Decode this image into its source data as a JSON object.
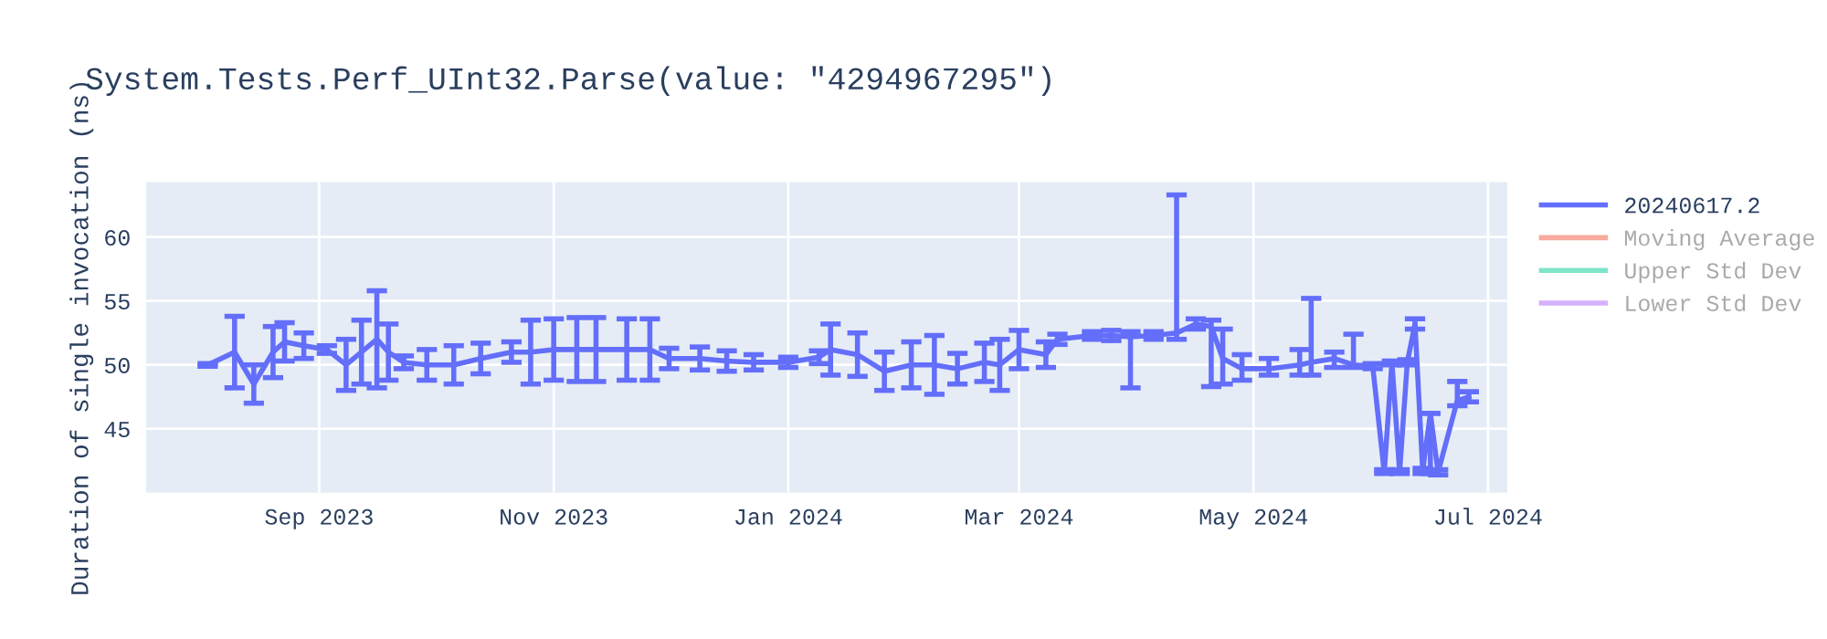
{
  "chart_data": {
    "type": "line",
    "title": "System.Tests.Perf_UInt32.Parse(value: \"4294967295\")",
    "ylabel": "Duration of single invocation (ns)",
    "x": [
      "2023-08-03",
      "2023-08-10",
      "2023-08-15",
      "2023-08-20",
      "2023-08-23",
      "2023-08-28",
      "2023-09-03",
      "2023-09-08",
      "2023-09-12",
      "2023-09-16",
      "2023-09-19",
      "2023-09-23",
      "2023-09-29",
      "2023-10-06",
      "2023-10-13",
      "2023-10-21",
      "2023-10-26",
      "2023-11-01",
      "2023-11-07",
      "2023-11-12",
      "2023-11-20",
      "2023-11-26",
      "2023-12-01",
      "2023-12-09",
      "2023-12-16",
      "2023-12-23",
      "2024-01-01",
      "2024-01-09",
      "2024-01-12",
      "2024-01-19",
      "2024-01-26",
      "2024-02-02",
      "2024-02-08",
      "2024-02-14",
      "2024-02-21",
      "2024-02-25",
      "2024-03-01",
      "2024-03-08",
      "2024-03-11",
      "2024-03-20",
      "2024-03-25",
      "2024-03-30",
      "2024-04-05",
      "2024-04-11",
      "2024-04-16",
      "2024-04-20",
      "2024-04-23",
      "2024-04-28",
      "2024-05-05",
      "2024-05-13",
      "2024-05-16",
      "2024-05-22",
      "2024-05-27",
      "2024-06-01",
      "2024-06-04",
      "2024-06-06",
      "2024-06-08",
      "2024-06-10",
      "2024-06-12",
      "2024-06-14",
      "2024-06-16",
      "2024-06-18",
      "2024-06-23",
      "2024-06-26"
    ],
    "series": [
      {
        "name": "20240617.2",
        "color": "#636efa",
        "values": [
          50.0,
          51.0,
          48.5,
          51.0,
          51.8,
          51.5,
          51.2,
          50.0,
          51.0,
          52.0,
          51.0,
          50.2,
          50.0,
          50.0,
          50.5,
          51.0,
          51.0,
          51.2,
          51.2,
          51.2,
          51.2,
          51.2,
          50.5,
          50.5,
          50.3,
          50.2,
          50.2,
          50.6,
          51.2,
          50.8,
          49.5,
          50.0,
          50.0,
          49.7,
          50.2,
          50.0,
          51.2,
          50.8,
          52.0,
          52.3,
          52.3,
          52.2,
          52.3,
          52.5,
          53.2,
          53.0,
          50.5,
          49.7,
          49.7,
          50.0,
          50.2,
          50.5,
          50.0,
          49.9,
          41.6,
          50.2,
          41.6,
          50.2,
          53.2,
          41.7,
          46.2,
          41.6,
          47.2,
          47.5
        ],
        "errors": [
          [
            49.9,
            50.1
          ],
          [
            48.2,
            53.8
          ],
          [
            47.0,
            50.0
          ],
          [
            49.0,
            53.0
          ],
          [
            50.3,
            53.3
          ],
          [
            50.5,
            52.5
          ],
          [
            50.9,
            51.5
          ],
          [
            48.0,
            52.0
          ],
          [
            48.5,
            53.5
          ],
          [
            48.2,
            55.8
          ],
          [
            48.8,
            53.2
          ],
          [
            49.7,
            50.7
          ],
          [
            48.8,
            51.2
          ],
          [
            48.5,
            51.5
          ],
          [
            49.3,
            51.7
          ],
          [
            50.2,
            51.8
          ],
          [
            48.5,
            53.5
          ],
          [
            48.8,
            53.6
          ],
          [
            48.7,
            53.7
          ],
          [
            48.7,
            53.7
          ],
          [
            48.8,
            53.6
          ],
          [
            48.8,
            53.6
          ],
          [
            49.7,
            51.3
          ],
          [
            49.6,
            51.4
          ],
          [
            49.5,
            51.1
          ],
          [
            49.6,
            50.8
          ],
          [
            49.8,
            50.6
          ],
          [
            50.1,
            51.1
          ],
          [
            49.2,
            53.2
          ],
          [
            49.1,
            52.5
          ],
          [
            48.0,
            51.0
          ],
          [
            48.2,
            51.8
          ],
          [
            47.7,
            52.3
          ],
          [
            48.5,
            50.9
          ],
          [
            48.7,
            51.7
          ],
          [
            48.0,
            52.0
          ],
          [
            49.7,
            52.7
          ],
          [
            49.8,
            51.8
          ],
          [
            51.6,
            52.4
          ],
          [
            52.0,
            52.6
          ],
          [
            51.9,
            52.7
          ],
          [
            48.2,
            52.6
          ],
          [
            52.0,
            52.6
          ],
          [
            52.0,
            63.3
          ],
          [
            52.8,
            53.6
          ],
          [
            48.3,
            53.5
          ],
          [
            48.5,
            52.8
          ],
          [
            48.8,
            50.8
          ],
          [
            49.2,
            50.5
          ],
          [
            49.2,
            51.2
          ],
          [
            49.2,
            55.2
          ],
          [
            49.8,
            51.0
          ],
          [
            49.8,
            52.4
          ],
          [
            49.7,
            50.1
          ],
          [
            41.5,
            41.8
          ],
          [
            50.0,
            50.3
          ],
          [
            41.5,
            41.8
          ],
          [
            50.0,
            50.4
          ],
          [
            52.8,
            53.6
          ],
          [
            41.5,
            41.9
          ],
          [
            41.5,
            46.2
          ],
          [
            41.4,
            41.8
          ],
          [
            46.8,
            48.7
          ],
          [
            47.1,
            47.9
          ]
        ]
      },
      {
        "name": "Moving Average",
        "color": "#ef553b",
        "values": [
          null,
          null,
          null,
          null,
          null,
          null,
          null,
          null,
          null,
          null,
          null,
          null,
          null,
          null,
          null,
          null,
          null,
          null,
          null,
          null,
          null,
          null,
          null,
          null,
          null,
          null,
          null,
          null,
          null,
          null,
          null,
          null,
          null,
          null,
          null,
          null,
          null,
          null,
          null,
          null,
          null,
          null,
          null,
          null,
          null,
          null,
          null,
          null,
          null,
          null,
          null,
          null,
          null,
          null,
          null,
          null,
          null,
          null,
          null,
          null,
          null,
          null,
          null,
          null
        ]
      },
      {
        "name": "Upper Std Dev",
        "color": "#00cc96",
        "values": [
          null,
          null,
          null,
          null,
          null,
          null,
          null,
          null,
          null,
          null,
          null,
          null,
          null,
          null,
          null,
          null,
          null,
          null,
          null,
          null,
          null,
          null,
          null,
          null,
          null,
          null,
          null,
          null,
          null,
          null,
          null,
          null,
          null,
          null,
          null,
          null,
          null,
          null,
          null,
          null,
          null,
          null,
          null,
          null,
          null,
          null,
          null,
          null,
          null,
          null,
          null,
          null,
          null,
          null,
          null,
          null,
          null,
          null,
          null,
          null,
          null,
          null,
          null,
          null
        ]
      },
      {
        "name": "Lower Std Dev",
        "color": "#ab63fa",
        "values": [
          null,
          null,
          null,
          null,
          null,
          null,
          null,
          null,
          null,
          null,
          null,
          null,
          null,
          null,
          null,
          null,
          null,
          null,
          null,
          null,
          null,
          null,
          null,
          null,
          null,
          null,
          null,
          null,
          null,
          null,
          null,
          null,
          null,
          null,
          null,
          null,
          null,
          null,
          null,
          null,
          null,
          null,
          null,
          null,
          null,
          null,
          null,
          null,
          null,
          null,
          null,
          null,
          null,
          null,
          null,
          null,
          null,
          null,
          null,
          null,
          null,
          null,
          null,
          null
        ]
      }
    ],
    "xlim": [
      "2023-07-18",
      "2024-07-06"
    ],
    "xticks": [
      {
        "value": "2023-09-01",
        "label": "Sep 2023"
      },
      {
        "value": "2023-11-01",
        "label": "Nov 2023"
      },
      {
        "value": "2024-01-01",
        "label": "Jan 2024"
      },
      {
        "value": "2024-03-01",
        "label": "Mar 2024"
      },
      {
        "value": "2024-05-01",
        "label": "May 2024"
      },
      {
        "value": "2024-07-01",
        "label": "Jul 2024"
      }
    ],
    "ylim": [
      40,
      64.3
    ],
    "yticks": [
      45,
      50,
      55,
      60
    ],
    "grid": true,
    "legend": "right",
    "marker": "none",
    "line_style": "solid"
  }
}
